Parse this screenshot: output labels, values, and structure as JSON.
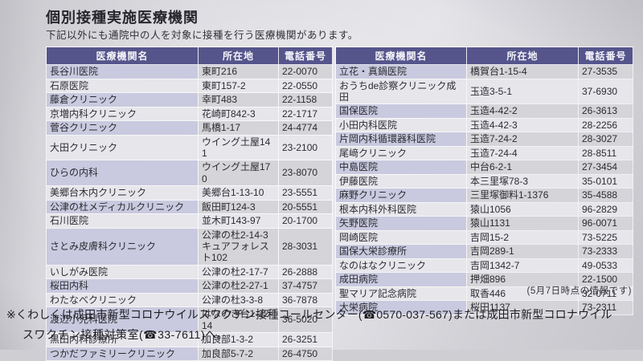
{
  "document": {
    "title": "個別接種実施医療機関",
    "subtitle": "下記以外にも通院中の人を対象に接種を行う医療機関があります。",
    "note": "(5月7日時点の情報です)",
    "footer": {
      "line1": "※くわしくは成田市新型コロナウイルスワクチン接種コールセンター(☎0570-037-567)または成田市新型コロナウイル",
      "line2": "スワクチン接種対策室(☎33-7611)へ。"
    }
  },
  "columns": [
    "医療機関名",
    "所在地",
    "電話番号"
  ],
  "left_table": {
    "rows": [
      {
        "name": "長谷川医院",
        "address": "東町216",
        "phone": "22-0070"
      },
      {
        "name": "石原医院",
        "address": "東町157-2",
        "phone": "22-0550"
      },
      {
        "name": "藤倉クリニック",
        "address": "幸町483",
        "phone": "22-1158"
      },
      {
        "name": "京増内科クリニック",
        "address": "花崎町842-3",
        "phone": "22-1717"
      },
      {
        "name": "菅谷クリニック",
        "address": "馬橋1-17",
        "phone": "24-4774"
      },
      {
        "name": "大田クリニック",
        "address": "ウイング土屋141",
        "phone": "23-2100"
      },
      {
        "name": "ひらの内科",
        "address": "ウイング土屋170",
        "phone": "23-8070"
      },
      {
        "name": "美郷台木内クリニック",
        "address": "美郷台1-13-10",
        "phone": "23-5551"
      },
      {
        "name": "公津の杜メディカルクリニック",
        "address": "飯田町124-3",
        "phone": "20-5551"
      },
      {
        "name": "石川医院",
        "address": "並木町143-97",
        "phone": "20-1700"
      },
      {
        "name": "さとみ皮膚科クリニック",
        "address": "公津の杜2-14-3キュアフォレスト102",
        "phone": "28-3031"
      },
      {
        "name": "いしがみ医院",
        "address": "公津の杜2-17-7",
        "phone": "26-2888"
      },
      {
        "name": "桜田内科",
        "address": "公津の杜2-27-1",
        "phone": "37-4757"
      },
      {
        "name": "わたなべクリニック",
        "address": "公津の杜3-3-8",
        "phone": "36-7878"
      },
      {
        "name": "渡辺小児科医院",
        "address": "はなのき台1-22-14",
        "phone": "36-5020"
      },
      {
        "name": "黒田内科診療所",
        "address": "加良部1-3-2",
        "phone": "26-3251"
      },
      {
        "name": "つかだファミリークリニック",
        "address": "加良部5-7-2",
        "phone": "26-4750"
      }
    ]
  },
  "right_table": {
    "rows": [
      {
        "name": "立花・真鍋医院",
        "address": "橋賀台1-15-4",
        "phone": "27-3535"
      },
      {
        "name": "おうちde診察クリニック成田",
        "address": "玉造3-5-1",
        "phone": "37-6930"
      },
      {
        "name": "国保医院",
        "address": "玉造4-42-2",
        "phone": "26-3613"
      },
      {
        "name": "小田内科医院",
        "address": "玉造4-42-3",
        "phone": "28-2256"
      },
      {
        "name": "片岡内科循環器科医院",
        "address": "玉造7-24-2",
        "phone": "28-3027"
      },
      {
        "name": "尾﨑クリニック",
        "address": "玉造7-24-4",
        "phone": "28-8511"
      },
      {
        "name": "中島医院",
        "address": "中台6-2-1",
        "phone": "27-3454"
      },
      {
        "name": "伊藤医院",
        "address": "本三里塚78-3",
        "phone": "35-0101"
      },
      {
        "name": "麻野クリニック",
        "address": "三里塚御料1-1376",
        "phone": "35-4588"
      },
      {
        "name": "根本内科外科医院",
        "address": "猿山1056",
        "phone": "96-2829"
      },
      {
        "name": "矢野医院",
        "address": "猿山1131",
        "phone": "96-0071"
      },
      {
        "name": "岡崎医院",
        "address": "吉岡15-2",
        "phone": "73-5225"
      },
      {
        "name": "国保大栄診療所",
        "address": "吉岡289-1",
        "phone": "73-2333"
      },
      {
        "name": "なのはなクリニック",
        "address": "吉岡1342-7",
        "phone": "49-0533"
      },
      {
        "name": "成田病院",
        "address": "押畑896",
        "phone": "22-1500"
      },
      {
        "name": "聖マリア記念病院",
        "address": "取香446",
        "phone": "32-0711"
      },
      {
        "name": "大栄病院",
        "address": "桜田1137",
        "phone": "73-2311"
      }
    ]
  },
  "colors": {
    "header_bg": "#55558c",
    "header_text": "#f4f3f8",
    "stripe_name": "#c9c9df",
    "stripe_other": "#d5d4d8",
    "row_alt": "#e7e6eb",
    "text": "#2b2b31"
  }
}
